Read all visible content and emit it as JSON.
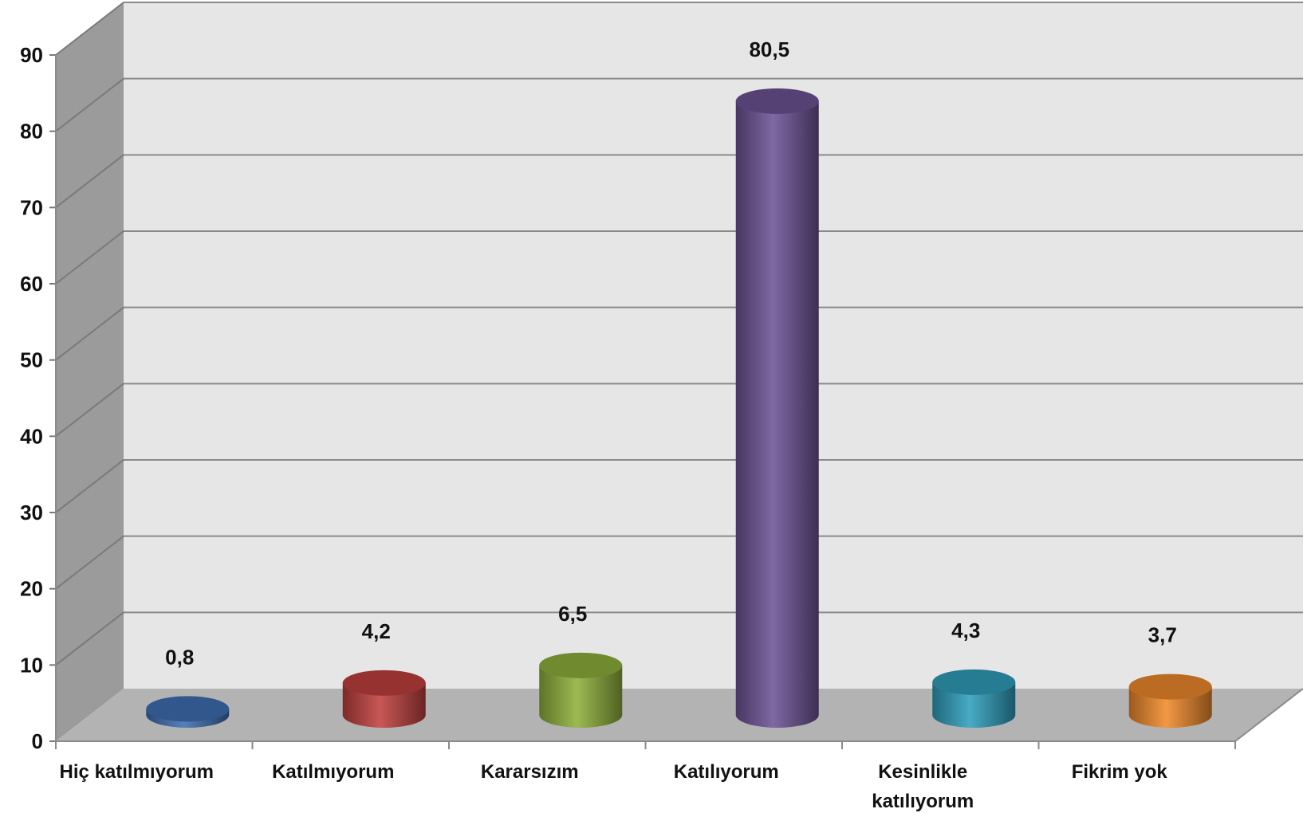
{
  "chart_data": {
    "type": "bar",
    "title": "",
    "xlabel": "",
    "ylabel": "",
    "ylim": [
      0,
      90
    ],
    "yticks": [
      "0",
      "10",
      "20",
      "30",
      "40",
      "50",
      "60",
      "70",
      "80",
      "90"
    ],
    "grid": true,
    "categories": [
      [
        "Hiç katılmıyorum"
      ],
      [
        "Katılmıyorum"
      ],
      [
        "Kararsızım"
      ],
      [
        "Katılıyorum"
      ],
      [
        "Kesinlikle",
        "katılıyorum"
      ],
      [
        "Fikrim yok"
      ]
    ],
    "values": [
      0.8,
      4.2,
      6.5,
      80.5,
      4.3,
      3.7
    ],
    "value_labels": [
      "0,8",
      "4,2",
      "6,5",
      "80,5",
      "4,3",
      "3,7"
    ],
    "colors": [
      "#3f6fb3",
      "#c0413f",
      "#8fb13c",
      "#6e5396",
      "#2f9fbd",
      "#f08a2c"
    ],
    "style": "3d-cylinder"
  }
}
